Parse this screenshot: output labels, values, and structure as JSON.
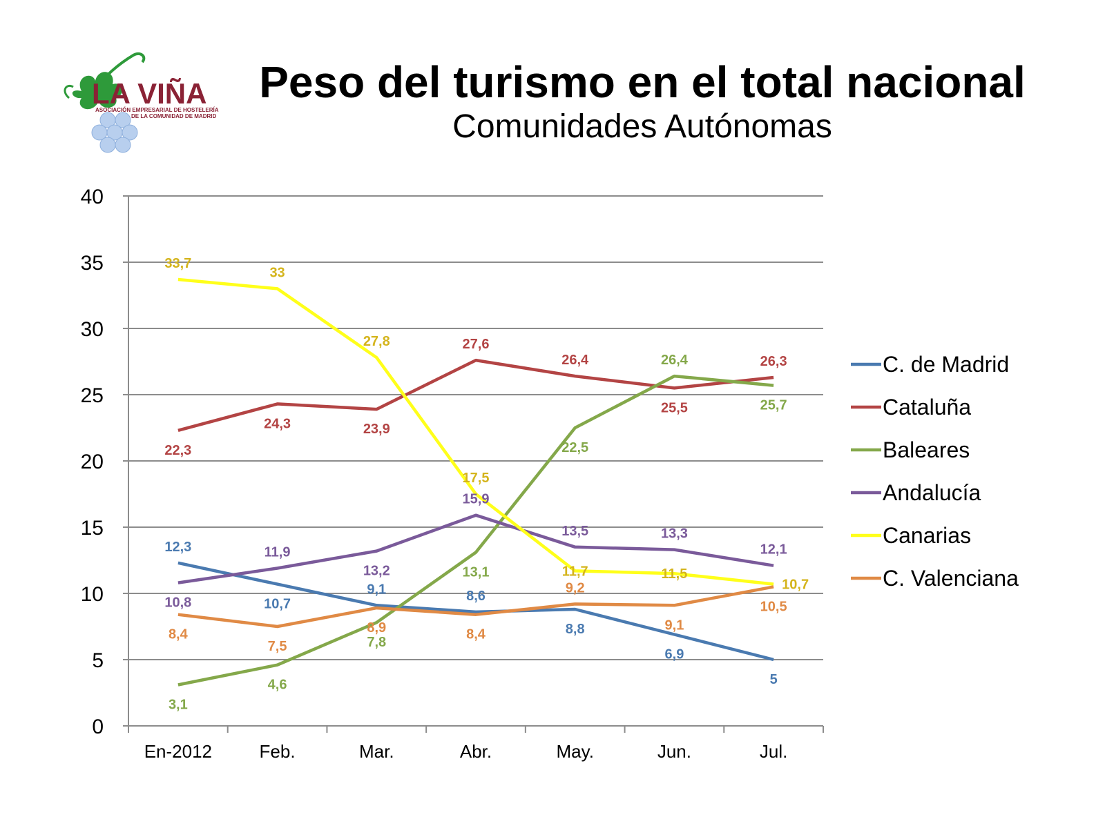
{
  "logo": {
    "name": "LA VIÑA",
    "line1": "ASOCIACIÓN EMPRESARIAL DE HOSTELERÍA",
    "line2": "DE LA COMUNIDAD DE MADRID"
  },
  "chart_data": {
    "type": "line",
    "title": "Peso del turismo en el total nacional",
    "subtitle": "Comunidades Autónomas",
    "categories": [
      "En-2012",
      "Feb.",
      "Mar.",
      "Abr.",
      "May.",
      "Jun.",
      "Jul."
    ],
    "ylim": [
      0,
      40
    ],
    "yticks": [
      0,
      5,
      10,
      15,
      20,
      25,
      30,
      35,
      40
    ],
    "grid": true,
    "legend_position": "right",
    "series": [
      {
        "name": "C. de Madrid",
        "color": "#4a7ab0",
        "values": [
          12.3,
          10.7,
          9.1,
          8.6,
          8.8,
          6.9,
          5
        ],
        "labels": [
          "12,3",
          "10,7",
          "9,1",
          "8,6",
          "8,8",
          "6,9",
          "5"
        ],
        "label_pos": [
          "above",
          "below",
          "above",
          "above",
          "below",
          "below",
          "below"
        ]
      },
      {
        "name": "Cataluña",
        "color": "#b34444",
        "values": [
          22.3,
          24.3,
          23.9,
          27.6,
          26.4,
          25.5,
          26.3
        ],
        "labels": [
          "22,3",
          "24,3",
          "23,9",
          "27,6",
          "26,4",
          "25,5",
          "26,3"
        ],
        "label_pos": [
          "below",
          "below",
          "below",
          "above",
          "above",
          "below",
          "above"
        ]
      },
      {
        "name": "Baleares",
        "color": "#84a84a",
        "values": [
          3.1,
          4.6,
          7.8,
          13.1,
          22.5,
          26.4,
          25.7
        ],
        "labels": [
          "3,1",
          "4,6",
          "7,8",
          "13,1",
          "22,5",
          "26,4",
          "25,7"
        ],
        "label_pos": [
          "below",
          "below",
          "below",
          "below",
          "below",
          "above",
          "below"
        ]
      },
      {
        "name": "Andalucía",
        "color": "#7a5a9a",
        "values": [
          10.8,
          11.9,
          13.2,
          15.9,
          13.5,
          13.3,
          12.1
        ],
        "labels": [
          "10,8",
          "11,9",
          "13,2",
          "15,9",
          "13,5",
          "13,3",
          "12,1"
        ],
        "label_pos": [
          "below",
          "above",
          "below",
          "above",
          "above",
          "above",
          "above"
        ]
      },
      {
        "name": "Canarias",
        "color": "#ffff1a",
        "values": [
          33.7,
          33,
          27.8,
          17.5,
          11.7,
          11.5,
          10.7
        ],
        "labels": [
          "33,7",
          "33",
          "27,8",
          "17,5",
          "11,7",
          "11,5",
          "10,7"
        ],
        "label_pos": [
          "above",
          "above",
          "above",
          "above",
          "center",
          "center",
          "right"
        ]
      },
      {
        "name": "C. Valenciana",
        "color": "#e08a45",
        "values": [
          8.4,
          7.5,
          8.9,
          8.4,
          9.2,
          9.1,
          10.5
        ],
        "labels": [
          "8,4",
          "7,5",
          "8,9",
          "8,4",
          "9,2",
          "9,1",
          "10,5"
        ],
        "label_pos": [
          "below",
          "below",
          "below",
          "below",
          "above",
          "below",
          "below"
        ]
      }
    ]
  }
}
